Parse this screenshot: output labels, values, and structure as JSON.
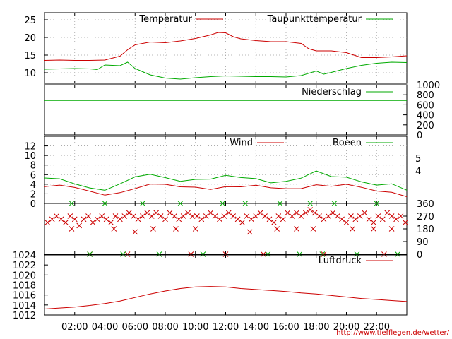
{
  "chart_data": [
    {
      "type": "line",
      "panel": "temperature",
      "ylim": [
        7,
        27
      ],
      "yticks": [
        "10",
        "15",
        "20",
        "25"
      ],
      "grid": true,
      "series": [
        {
          "name": "Temperatur",
          "color": "#cc0000",
          "x": [
            0,
            1,
            2,
            3,
            4,
            5,
            5.5,
            6,
            7,
            8,
            9,
            10,
            10.5,
            11,
            11.5,
            12,
            12.5,
            13,
            14,
            15,
            16,
            17,
            17.5,
            18,
            19,
            20,
            21,
            22,
            23,
            24
          ],
          "values": [
            13.5,
            13.6,
            13.5,
            13.5,
            13.6,
            14.7,
            16.5,
            17.9,
            18.7,
            18.5,
            19.0,
            19.7,
            20.2,
            20.7,
            21.4,
            21.3,
            20.2,
            19.6,
            19.1,
            18.8,
            18.8,
            18.3,
            16.8,
            16.2,
            16.2,
            15.7,
            14.3,
            14.3,
            14.5,
            14.8
          ]
        },
        {
          "name": "Taupunkttemperatur",
          "color": "#00aa00",
          "x": [
            0,
            1,
            2,
            3,
            3.5,
            4,
            5,
            5.5,
            6,
            6.5,
            7,
            8,
            9,
            10,
            11,
            12,
            13,
            14,
            15,
            16,
            17,
            18,
            18.5,
            19,
            20,
            21,
            22,
            23,
            24
          ],
          "values": [
            11.0,
            11.1,
            11.2,
            11.1,
            10.9,
            12.2,
            12.0,
            13.0,
            11.2,
            10.3,
            9.4,
            8.5,
            8.2,
            8.6,
            8.9,
            9.1,
            9.0,
            8.9,
            8.9,
            8.8,
            9.2,
            10.5,
            9.6,
            10.1,
            11.2,
            12.1,
            12.7,
            13.0,
            12.9
          ]
        }
      ]
    },
    {
      "type": "line",
      "panel": "precipitation",
      "ylim": [
        0,
        1000
      ],
      "yticks": [
        "0",
        "200",
        "400",
        "600",
        "800",
        "1000"
      ],
      "grid": false,
      "series": [
        {
          "name": "Niederschlag",
          "color": "#00aa00",
          "x": [
            0,
            24
          ],
          "values": [
            686,
            686
          ]
        }
      ]
    },
    {
      "type": "line",
      "panel": "wind",
      "ylim": [
        0,
        14
      ],
      "yticks": [
        "0",
        "2",
        "4",
        "6",
        "8",
        "10",
        "12"
      ],
      "y2ticks": [
        "4",
        "5"
      ],
      "grid": true,
      "series": [
        {
          "name": "Wind",
          "color": "#cc0000",
          "x": [
            0,
            1,
            2,
            3,
            4,
            5,
            6,
            7,
            8,
            9,
            10,
            11,
            12,
            13,
            14,
            15,
            16,
            17,
            18,
            19,
            20,
            21,
            22,
            23,
            24
          ],
          "values": [
            3.5,
            3.3,
            2.8,
            2.5,
            2.2,
            2.8,
            3.2,
            3.6,
            3.4,
            3.3,
            3.8,
            3.5,
            3.7,
            3.1,
            3.2,
            3.0,
            3.4,
            3.7,
            4.2,
            3.3,
            3.4,
            3.0,
            2.8,
            2.9,
            1.8
          ]
        },
        {
          "name": "Boeen",
          "color": "#00aa00",
          "x": [
            0,
            1,
            2,
            3,
            4,
            5,
            6,
            7,
            8,
            9,
            10,
            11,
            12,
            13,
            14,
            15,
            16,
            17,
            18,
            19,
            20,
            21,
            22,
            23,
            24
          ],
          "values": [
            4.8,
            4.6,
            4.0,
            3.7,
            3.3,
            4.2,
            5.1,
            5.5,
            5.2,
            5.0,
            5.6,
            5.3,
            5.5,
            4.8,
            4.9,
            4.6,
            5.2,
            5.6,
            6.5,
            5.0,
            5.1,
            4.7,
            4.4,
            4.5,
            2.6
          ]
        }
      ]
    },
    {
      "type": "scatter",
      "panel": "wind-direction",
      "ylim": [
        0,
        360
      ],
      "y2ticks": [
        "0",
        "90",
        "180",
        "270",
        "360"
      ],
      "grid": false,
      "series": [
        {
          "name": "",
          "color": "#cc0000",
          "marker": "x",
          "x": [
            0.2,
            0.5,
            0.8,
            1.1,
            1.4,
            1.7,
            2.0,
            2.3,
            2.6,
            2.9,
            3.2,
            3.5,
            3.8,
            4.1,
            4.4,
            4.7,
            5.0,
            5.3,
            5.6,
            5.9,
            6.2,
            6.5,
            6.8,
            7.1,
            7.4,
            7.7,
            8.0,
            8.3,
            8.6,
            8.9,
            9.2,
            9.5,
            9.8,
            10.1,
            10.4,
            10.7,
            11.0,
            11.3,
            11.6,
            11.9,
            12.2,
            12.5,
            12.8,
            13.1,
            13.4,
            13.7,
            14.0,
            14.3,
            14.6,
            14.9,
            15.2,
            15.5,
            15.8,
            16.1,
            16.4,
            16.7,
            17.0,
            17.3,
            17.6,
            17.9,
            18.2,
            18.5,
            18.8,
            19.1,
            19.4,
            19.7,
            20.0,
            20.3,
            20.6,
            20.9,
            21.2,
            21.5,
            21.8,
            22.1,
            22.4,
            22.7,
            23.0,
            23.3,
            23.6,
            23.9,
            1.8,
            4.6,
            6.0,
            7.2,
            8.7,
            10.0,
            13.6,
            15.4,
            16.7,
            17.8,
            20.4,
            21.8,
            23.0,
            3.0,
            5.5,
            9.7,
            12.0,
            14.5,
            18.5,
            22.5
          ],
          "values": [
            225,
            248,
            270,
            248,
            225,
            270,
            248,
            203,
            248,
            270,
            225,
            248,
            270,
            248,
            225,
            270,
            248,
            270,
            293,
            270,
            248,
            270,
            293,
            270,
            293,
            270,
            248,
            293,
            270,
            248,
            270,
            293,
            270,
            270,
            248,
            270,
            293,
            270,
            248,
            270,
            293,
            270,
            248,
            225,
            270,
            248,
            270,
            293,
            270,
            248,
            225,
            270,
            248,
            293,
            270,
            293,
            270,
            293,
            315,
            293,
            270,
            248,
            270,
            293,
            270,
            248,
            225,
            270,
            248,
            270,
            293,
            248,
            225,
            270,
            248,
            293,
            270,
            248,
            270,
            225,
            180,
            180,
            158,
            180,
            180,
            180,
            158,
            180,
            180,
            180,
            180,
            180,
            180,
            0,
            0,
            0,
            0,
            0,
            0,
            0
          ]
        },
        {
          "name": "",
          "color": "#00aa00",
          "marker": "x",
          "x": [
            1.8,
            3.0,
            4.0,
            5.2,
            6.5,
            7.6,
            9.0,
            10.5,
            11.8,
            13.3,
            14.8,
            15.6,
            16.9,
            17.6,
            18.4,
            19.2,
            20.7,
            22.0,
            23.4
          ],
          "values": [
            360,
            0,
            360,
            0,
            360,
            0,
            360,
            0,
            360,
            360,
            0,
            360,
            0,
            360,
            0,
            360,
            0,
            360,
            0
          ]
        }
      ]
    },
    {
      "type": "line",
      "panel": "pressure",
      "ylim": [
        1012,
        1024
      ],
      "yticks": [
        "1012",
        "1014",
        "1016",
        "1018",
        "1020",
        "1022",
        "1024"
      ],
      "grid": false,
      "series": [
        {
          "name": "Luftdruck",
          "color": "#cc0000",
          "x": [
            0,
            1,
            2,
            3,
            4,
            5,
            6,
            7,
            8,
            9,
            10,
            11,
            12,
            13,
            14,
            15,
            16,
            17,
            18,
            19,
            20,
            21,
            22,
            23,
            24
          ],
          "values": [
            1013.2,
            1013.4,
            1013.6,
            1013.9,
            1014.3,
            1014.8,
            1015.5,
            1016.2,
            1016.8,
            1017.3,
            1017.6,
            1017.7,
            1017.6,
            1017.3,
            1017.1,
            1016.9,
            1016.7,
            1016.4,
            1016.2,
            1015.9,
            1015.6,
            1015.3,
            1015.1,
            1014.9,
            1014.7
          ]
        }
      ]
    }
  ],
  "xaxis": {
    "ticks": [
      "02:00",
      "04:00",
      "06:00",
      "08:00",
      "10:00",
      "12:00",
      "14:00",
      "16:00",
      "18:00",
      "20:00",
      "22:00"
    ],
    "range": [
      0,
      24
    ],
    "tickvalues": [
      2,
      4,
      6,
      8,
      10,
      12,
      14,
      16,
      18,
      20,
      22
    ]
  },
  "footer": {
    "url": "http://www.tiefflegen.de/wetter/"
  }
}
